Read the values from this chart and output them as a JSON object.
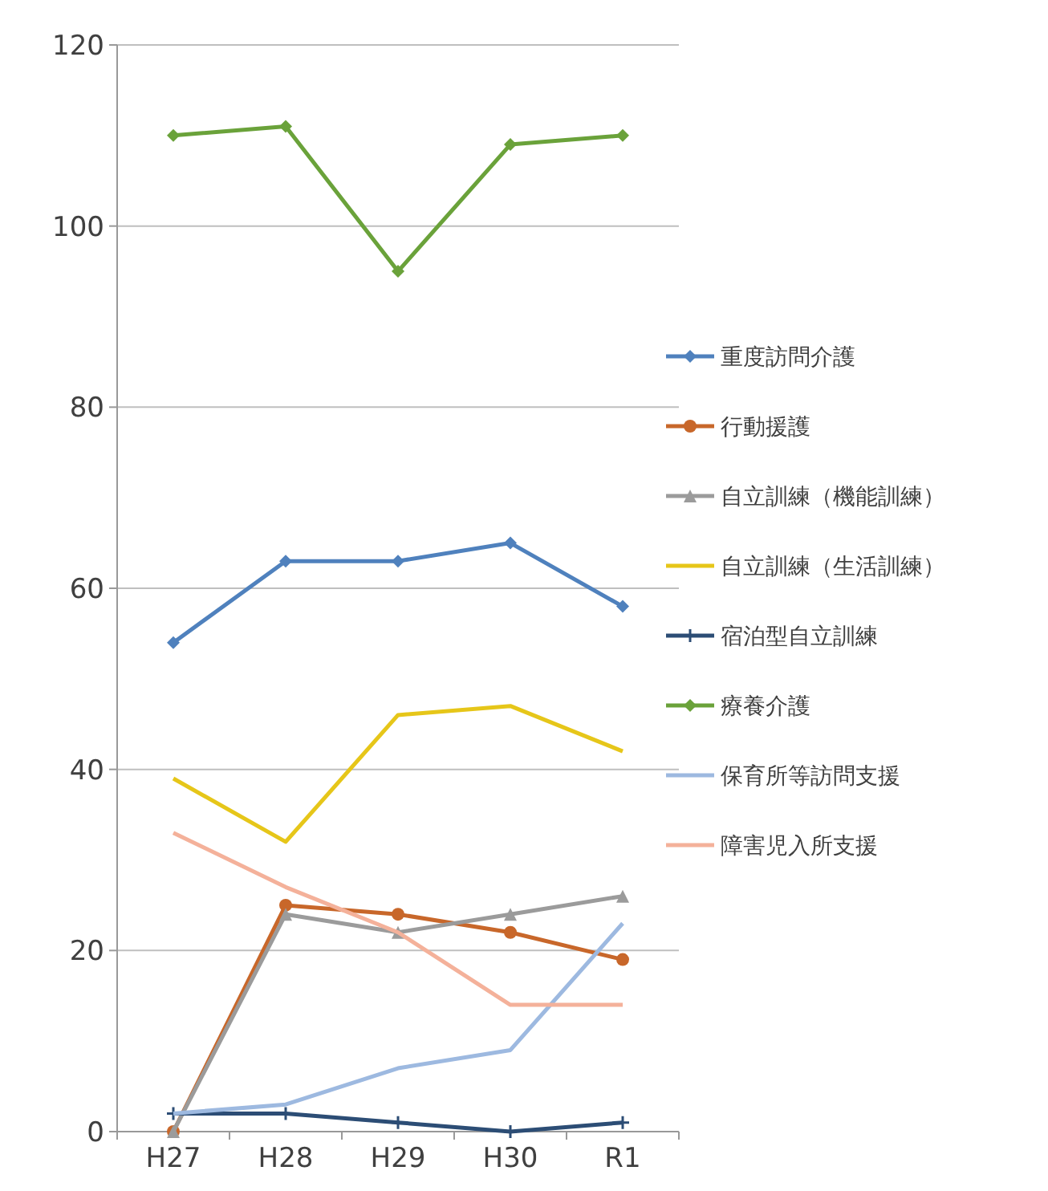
{
  "chart_data": {
    "type": "line",
    "categories": [
      "H27",
      "H28",
      "H29",
      "H30",
      "R1"
    ],
    "ylim": [
      0,
      120
    ],
    "yticks": [
      0,
      20,
      40,
      60,
      80,
      100,
      120
    ],
    "grid": "y",
    "legend": "right",
    "series": [
      {
        "name": "重度訪問介護",
        "color": "#4f81bd",
        "marker": "diamond",
        "values": [
          54,
          63,
          63,
          65,
          58
        ]
      },
      {
        "name": "行動援護",
        "color": "#c8672a",
        "marker": "circle",
        "values": [
          0,
          25,
          24,
          22,
          19
        ]
      },
      {
        "name": "自立訓練（機能訓練）",
        "color": "#9b9b9b",
        "marker": "triangle",
        "values": [
          0,
          24,
          22,
          24,
          26
        ]
      },
      {
        "name": "自立訓練（生活訓練）",
        "color": "#e6c619",
        "marker": "none",
        "values": [
          39,
          32,
          46,
          47,
          42
        ]
      },
      {
        "name": "宿泊型自立訓練",
        "color": "#2c4d75",
        "marker": "cross",
        "values": [
          2,
          2,
          1,
          0,
          1
        ]
      },
      {
        "name": "療養介護",
        "color": "#6aa23a",
        "marker": "diamond",
        "values": [
          110,
          111,
          95,
          109,
          110
        ]
      },
      {
        "name": "保育所等訪問支援",
        "color": "#9db9e0",
        "marker": "none",
        "values": [
          2,
          3,
          7,
          9,
          23
        ]
      },
      {
        "name": "障害児入所支援",
        "color": "#f4b19a",
        "marker": "none",
        "values": [
          33,
          27,
          22,
          14,
          14
        ]
      }
    ]
  }
}
